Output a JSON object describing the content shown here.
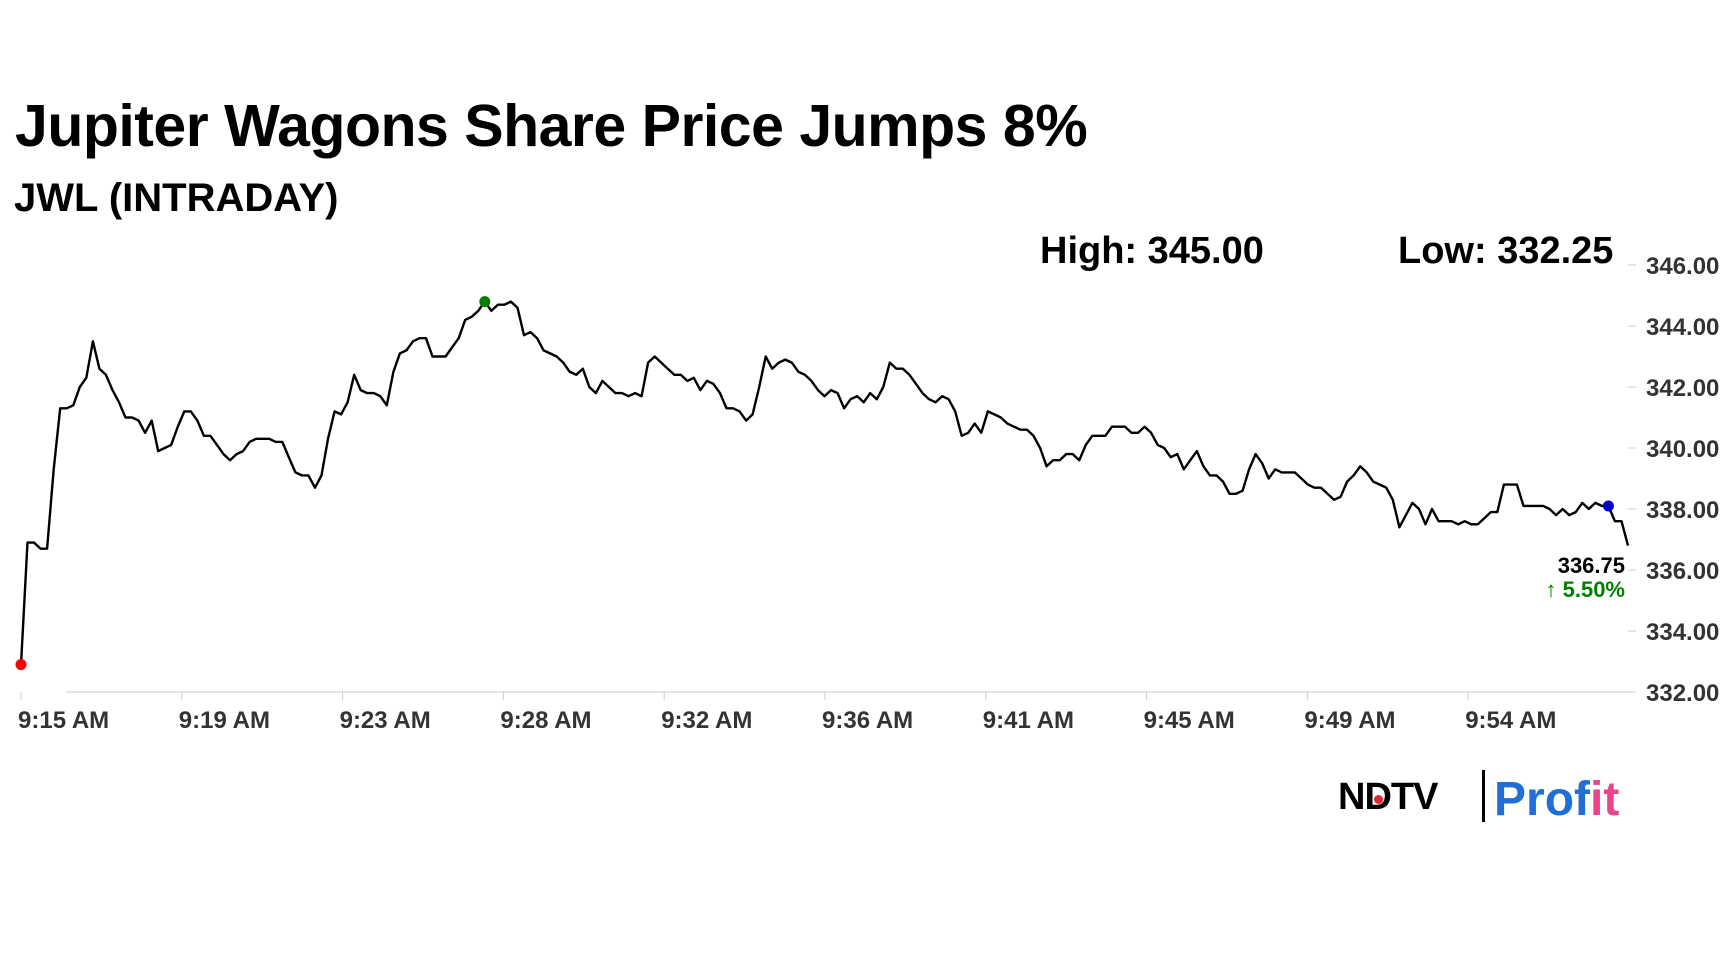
{
  "header": {
    "title": "Jupiter Wagons Share Price Jumps 8%",
    "subtitle": "JWL (INTRADAY)"
  },
  "stats": {
    "high": "High: 345.00",
    "low": "Low: 332.25"
  },
  "colors": {
    "line": "#000000",
    "open_marker": "#ff0000",
    "high_marker": "#008000",
    "last_marker": "#0000cc",
    "change_positive": "#008000"
  },
  "brand": {
    "ndtv": "NDTV",
    "profit_blue": "Prof",
    "profit_pink": "it"
  },
  "chart_data": {
    "type": "line",
    "x_tick_labels": [
      "9:15 AM",
      "9:19 AM",
      "9:23 AM",
      "9:28 AM",
      "9:32 AM",
      "9:36 AM",
      "9:41 AM",
      "9:45 AM",
      "9:49 AM",
      "9:54 AM"
    ],
    "y_tick_labels": [
      "346.00",
      "344.00",
      "342.00",
      "340.00",
      "338.00",
      "336.00",
      "334.00",
      "332.00"
    ],
    "ylim": [
      332.0,
      346.0
    ],
    "ymin_plot": 332.0,
    "yticks": [
      346,
      344,
      342,
      340,
      338,
      336,
      334,
      332
    ],
    "last_value": "336.75",
    "change": "↑ 5.50%",
    "series": [
      {
        "values": [
          332.9,
          336.9,
          336.9,
          336.7,
          336.7,
          339.3,
          341.3,
          341.3,
          341.4,
          342.0,
          342.3,
          343.5,
          342.6,
          342.4,
          341.9,
          341.5,
          341.0,
          341.0,
          340.9,
          340.5,
          340.9,
          339.9,
          340.0,
          340.1,
          340.7,
          341.2,
          341.2,
          340.9,
          340.4,
          340.4,
          340.1,
          339.8,
          339.6,
          339.8,
          339.9,
          340.2,
          340.3,
          340.3,
          340.3,
          340.2,
          340.2,
          339.7,
          339.2,
          339.1,
          339.1,
          338.7,
          339.1,
          340.3,
          341.2,
          341.1,
          341.5,
          342.4,
          341.9,
          341.8,
          341.8,
          341.7,
          341.4,
          342.5,
          343.1,
          343.2,
          343.5,
          343.6,
          343.6,
          343.0,
          343.0,
          343.0,
          343.3,
          343.6,
          344.2,
          344.3,
          344.5,
          344.8,
          344.5,
          344.7,
          344.7,
          344.8,
          344.6,
          343.7,
          343.8,
          343.6,
          343.2,
          343.1,
          343.0,
          342.8,
          342.5,
          342.4,
          342.6,
          342.0,
          341.8,
          342.2,
          342.0,
          341.8,
          341.8,
          341.7,
          341.8,
          341.7,
          342.8,
          343.0,
          342.8,
          342.6,
          342.4,
          342.4,
          342.2,
          342.3,
          341.9,
          342.2,
          342.1,
          341.8,
          341.3,
          341.3,
          341.2,
          340.9,
          341.1,
          342.0,
          343.0,
          342.6,
          342.8,
          342.9,
          342.8,
          342.5,
          342.4,
          342.2,
          341.9,
          341.7,
          341.9,
          341.8,
          341.3,
          341.6,
          341.7,
          341.5,
          341.8,
          341.6,
          342.0,
          342.8,
          342.6,
          342.6,
          342.4,
          342.1,
          341.8,
          341.6,
          341.5,
          341.7,
          341.6,
          341.2,
          340.4,
          340.5,
          340.8,
          340.5,
          341.2,
          341.1,
          341.0,
          340.8,
          340.7,
          340.6,
          340.6,
          340.4,
          340.0,
          339.4,
          339.6,
          339.6,
          339.8,
          339.8,
          339.6,
          340.1,
          340.4,
          340.4,
          340.4,
          340.7,
          340.7,
          340.7,
          340.5,
          340.5,
          340.7,
          340.5,
          340.1,
          340.0,
          339.7,
          339.8,
          339.3,
          339.6,
          339.9,
          339.4,
          339.1,
          339.1,
          338.9,
          338.5,
          338.5,
          338.6,
          339.3,
          339.8,
          339.5,
          339.0,
          339.3,
          339.2,
          339.2,
          339.2,
          339.0,
          338.8,
          338.7,
          338.7,
          338.5,
          338.3,
          338.4,
          338.9,
          339.1,
          339.4,
          339.2,
          338.9,
          338.8,
          338.7,
          338.3,
          337.4,
          337.8,
          338.2,
          338.0,
          337.5,
          338.0,
          337.6,
          337.6,
          337.6,
          337.5,
          337.6,
          337.5,
          337.5,
          337.7,
          337.9,
          337.9,
          338.8,
          338.8,
          338.8,
          338.1,
          338.1,
          338.1,
          338.1,
          338.0,
          337.8,
          338.0,
          337.8,
          337.9,
          338.2,
          338.0,
          338.2,
          338.1,
          338.1,
          337.6,
          337.6,
          336.8
        ]
      }
    ],
    "markers": [
      {
        "role": "open",
        "index": 0
      },
      {
        "role": "high",
        "index": 71
      },
      {
        "role": "last",
        "index": 243
      }
    ]
  }
}
